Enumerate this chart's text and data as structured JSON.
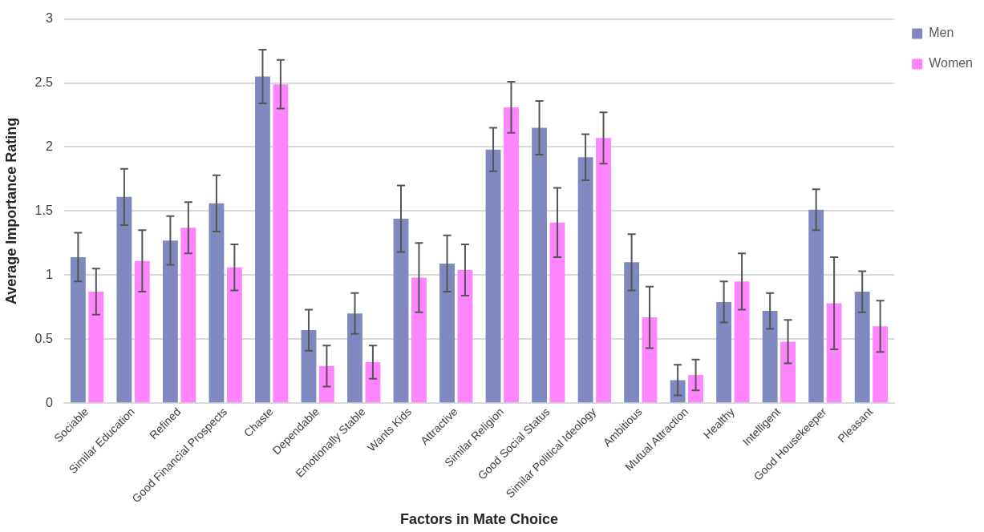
{
  "chart_data": {
    "type": "bar",
    "xlabel": "Factors in Mate Choice",
    "ylabel": "Average Importance Rating",
    "categories": [
      "Sociable",
      "Similar Education",
      "Refined",
      "Good Financial Prospects",
      "Chaste",
      "Dependable",
      "Emotionally Stable",
      "Wants Kids",
      "Attractive",
      "Similar Religion",
      "Good Social Status",
      "Similar Political Ideology",
      "Ambitious",
      "Mutual Attraction",
      "Healthy",
      "Intelligent",
      "Good Housekeeper",
      "Pleasant"
    ],
    "series": [
      {
        "name": "Men",
        "color": "#7f89c0",
        "values": [
          1.14,
          1.61,
          1.27,
          1.56,
          2.55,
          0.57,
          0.7,
          1.44,
          1.09,
          1.98,
          2.15,
          1.92,
          1.1,
          0.18,
          0.79,
          0.72,
          1.51,
          0.87
        ],
        "errors": [
          0.19,
          0.22,
          0.19,
          0.22,
          0.21,
          0.16,
          0.16,
          0.26,
          0.22,
          0.17,
          0.21,
          0.18,
          0.22,
          0.12,
          0.16,
          0.14,
          0.16,
          0.16
        ]
      },
      {
        "name": "Women",
        "color": "#ff85ff",
        "values": [
          0.87,
          1.11,
          1.37,
          1.06,
          2.49,
          0.29,
          0.32,
          0.98,
          1.04,
          2.31,
          1.41,
          2.07,
          0.67,
          0.22,
          0.95,
          0.48,
          0.78,
          0.6
        ],
        "errors": [
          0.18,
          0.24,
          0.2,
          0.18,
          0.19,
          0.16,
          0.13,
          0.27,
          0.2,
          0.2,
          0.27,
          0.2,
          0.24,
          0.12,
          0.22,
          0.17,
          0.36,
          0.2
        ]
      }
    ],
    "ylim": [
      0,
      3
    ],
    "yticks": [
      0,
      0.5,
      1,
      1.5,
      2,
      2.5,
      3
    ],
    "grid": "y",
    "legend": "top right"
  }
}
